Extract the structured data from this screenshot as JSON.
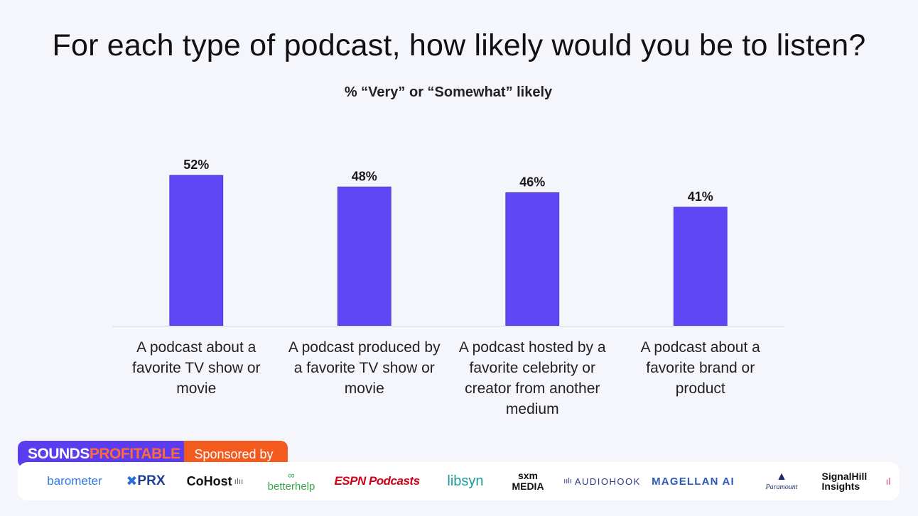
{
  "chart_data": {
    "type": "bar",
    "title": "For each type of podcast, how likely would you be to listen?",
    "subtitle": "% “Very” or “Somewhat” likely",
    "categories": [
      [
        "A podcast about a",
        "favorite TV show or",
        "movie"
      ],
      [
        "A podcast produced by",
        "a favorite TV show or",
        "movie"
      ],
      [
        "A podcast hosted by a",
        "favorite celebrity or",
        "creator from another",
        "medium"
      ],
      [
        "A podcast about a",
        "favorite brand or",
        "product"
      ]
    ],
    "values": [
      52,
      48,
      46,
      41
    ],
    "value_labels": [
      "52%",
      "48%",
      "46%",
      "41%"
    ],
    "ylim": [
      0,
      52
    ],
    "bar_color": "#6046f5",
    "xlabel": "",
    "ylabel": ""
  },
  "footer": {
    "brand_part1": "SOUNDS",
    "brand_part2": "PROFITABLE",
    "sponsored_label": "Sponsored by",
    "logos": [
      "barometer",
      "PRX",
      "CoHost",
      "betterhelp",
      "ESPN Podcasts",
      "libsyn",
      "sxm MEDIA",
      "AUDIOHOOK",
      "MAGELLAN AI",
      "Paramount",
      "SignalHill Insights"
    ]
  }
}
